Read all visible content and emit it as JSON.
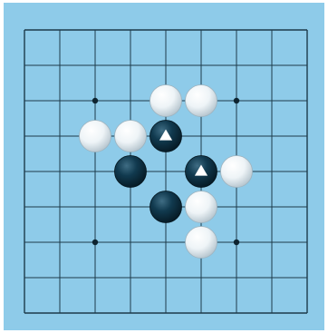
{
  "board": {
    "lines": 9,
    "background_color": "#8ecbe9",
    "line_color": "#1d3b4a",
    "star_points": [
      [
        2,
        2
      ],
      [
        6,
        2
      ],
      [
        2,
        6
      ],
      [
        6,
        6
      ]
    ],
    "stones": [
      {
        "color": "white",
        "col": 4,
        "row": 2
      },
      {
        "color": "white",
        "col": 5,
        "row": 2
      },
      {
        "color": "white",
        "col": 2,
        "row": 3
      },
      {
        "color": "white",
        "col": 3,
        "row": 3
      },
      {
        "color": "black",
        "col": 4,
        "row": 3,
        "marker": "triangle"
      },
      {
        "color": "black",
        "col": 3,
        "row": 4
      },
      {
        "color": "black",
        "col": 5,
        "row": 4,
        "marker": "triangle"
      },
      {
        "color": "white",
        "col": 6,
        "row": 4
      },
      {
        "color": "black",
        "col": 4,
        "row": 5
      },
      {
        "color": "white",
        "col": 5,
        "row": 5
      },
      {
        "color": "white",
        "col": 5,
        "row": 6
      }
    ],
    "marker_color": "#ffffff",
    "black_stone_color": "#0c3448",
    "white_stone_color": "#f4f8fa"
  }
}
